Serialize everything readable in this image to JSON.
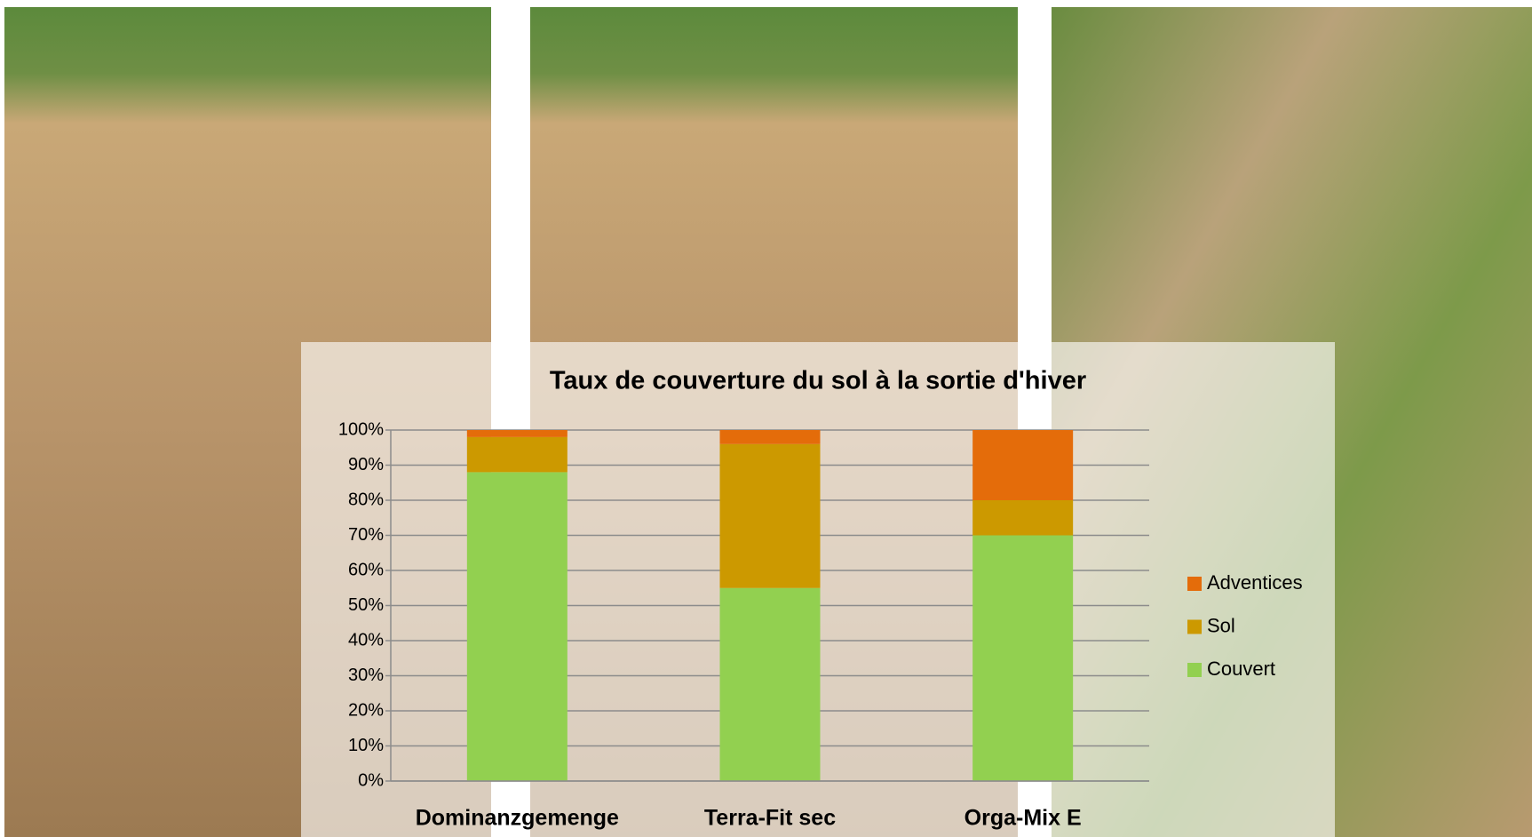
{
  "chart_data": {
    "type": "stacked_bar",
    "title": "Taux de couverture du sol à la sortie d'hiver",
    "categories": [
      "Dominanzgemenge",
      "Terra-Fit sec",
      "Orga-Mix E"
    ],
    "series": [
      {
        "name": "Couvert",
        "color": "#92d050",
        "values": [
          88,
          55,
          70
        ]
      },
      {
        "name": "Sol",
        "color": "#cc9900",
        "values": [
          10,
          41,
          10
        ]
      },
      {
        "name": "Adventices",
        "color": "#e46c0a",
        "values": [
          2,
          4,
          20
        ]
      }
    ],
    "ylim": [
      0,
      100
    ],
    "yticks": [
      {
        "value": 0,
        "label": "0%"
      },
      {
        "value": 10,
        "label": "10%"
      },
      {
        "value": 20,
        "label": "20%"
      },
      {
        "value": 30,
        "label": "30%"
      },
      {
        "value": 40,
        "label": "40%"
      },
      {
        "value": 50,
        "label": "50%"
      },
      {
        "value": 60,
        "label": "60%"
      },
      {
        "value": 70,
        "label": "70%"
      },
      {
        "value": 80,
        "label": "80%"
      },
      {
        "value": 90,
        "label": "90%"
      },
      {
        "value": 100,
        "label": "100%"
      }
    ],
    "grid": true,
    "legend": "right"
  }
}
